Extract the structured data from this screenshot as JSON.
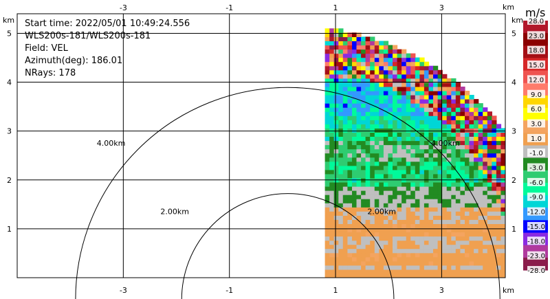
{
  "header": {
    "info_lines": [
      "Start time: 2022/05/01 10:49:24.556",
      "WLS200s-181/WLS200s-181",
      "Field: VEL",
      "Azimuth(deg): 186.01",
      "NRays: 178"
    ]
  },
  "chart_data": {
    "type": "heatmap",
    "projection": "polar-sector",
    "field": "VEL",
    "xlabel": "km",
    "ylabel": "km",
    "xlim": [
      -5.0,
      4.2
    ],
    "ylim": [
      0,
      5.4
    ],
    "x_ticks": [
      -3,
      -1,
      1,
      3
    ],
    "y_ticks": [
      1,
      2,
      3,
      4,
      5
    ],
    "grid": true,
    "range_rings": [
      {
        "radius_km": 2.0,
        "label": "2.00km"
      },
      {
        "radius_km": 4.0,
        "label": "4.00km"
      }
    ],
    "colorbar": {
      "title": "m/s",
      "placement": "right",
      "tick_labels": [
        "28.0",
        "23.0",
        "18.0",
        "15.0",
        "12.0",
        "9.0",
        "6.0",
        "3.0",
        "1.0",
        "-1.0",
        "-3.0",
        "-6.0",
        "-9.0",
        "-12.0",
        "-15.0",
        "-18.0",
        "-23.0",
        "-28.0"
      ],
      "colors": [
        "#b2182b",
        "#8b0000",
        "#a50f15",
        "#d62728",
        "#ef5350",
        "#ff7b6b",
        "#ffd700",
        "#ffff00",
        "#f4a460",
        "#f0a050",
        "#bfbfbf",
        "#228b22",
        "#2ecc71",
        "#00fa9a",
        "#00d6d6",
        "#3399ff",
        "#0000ff",
        "#8a2be2",
        "#b03a9e",
        "#8b1c4b"
      ]
    },
    "scan_sector": {
      "x_start_km": 0.8,
      "y_max_km": 5.1,
      "max_range_km": 5.1
    },
    "velocity_bands": [
      {
        "y_from_km": 0.0,
        "y_to_km": 0.12,
        "value": 1.5
      },
      {
        "y_from_km": 0.12,
        "y_to_km": 0.25,
        "value": -0.5
      },
      {
        "y_from_km": 0.25,
        "y_to_km": 0.45,
        "value": 2.0
      },
      {
        "y_from_km": 0.45,
        "y_to_km": 0.8,
        "value": 0.0
      },
      {
        "y_from_km": 0.8,
        "y_to_km": 1.05,
        "value": 2.0
      },
      {
        "y_from_km": 1.05,
        "y_to_km": 1.4,
        "value": 0.0
      },
      {
        "y_from_km": 1.4,
        "y_to_km": 1.8,
        "value": -2.5
      },
      {
        "y_from_km": 1.8,
        "y_to_km": 2.3,
        "value": -7.5
      },
      {
        "y_from_km": 2.3,
        "y_to_km": 2.75,
        "value": -4.0
      },
      {
        "y_from_km": 2.75,
        "y_to_km": 3.0,
        "value": -8.0
      },
      {
        "y_from_km": 3.0,
        "y_to_km": 3.3,
        "value": -10.0
      },
      {
        "y_from_km": 3.3,
        "y_to_km": 4.0,
        "value": -13.0
      },
      {
        "y_from_km": 4.0,
        "y_to_km": 5.1,
        "value": 18.0
      }
    ]
  }
}
